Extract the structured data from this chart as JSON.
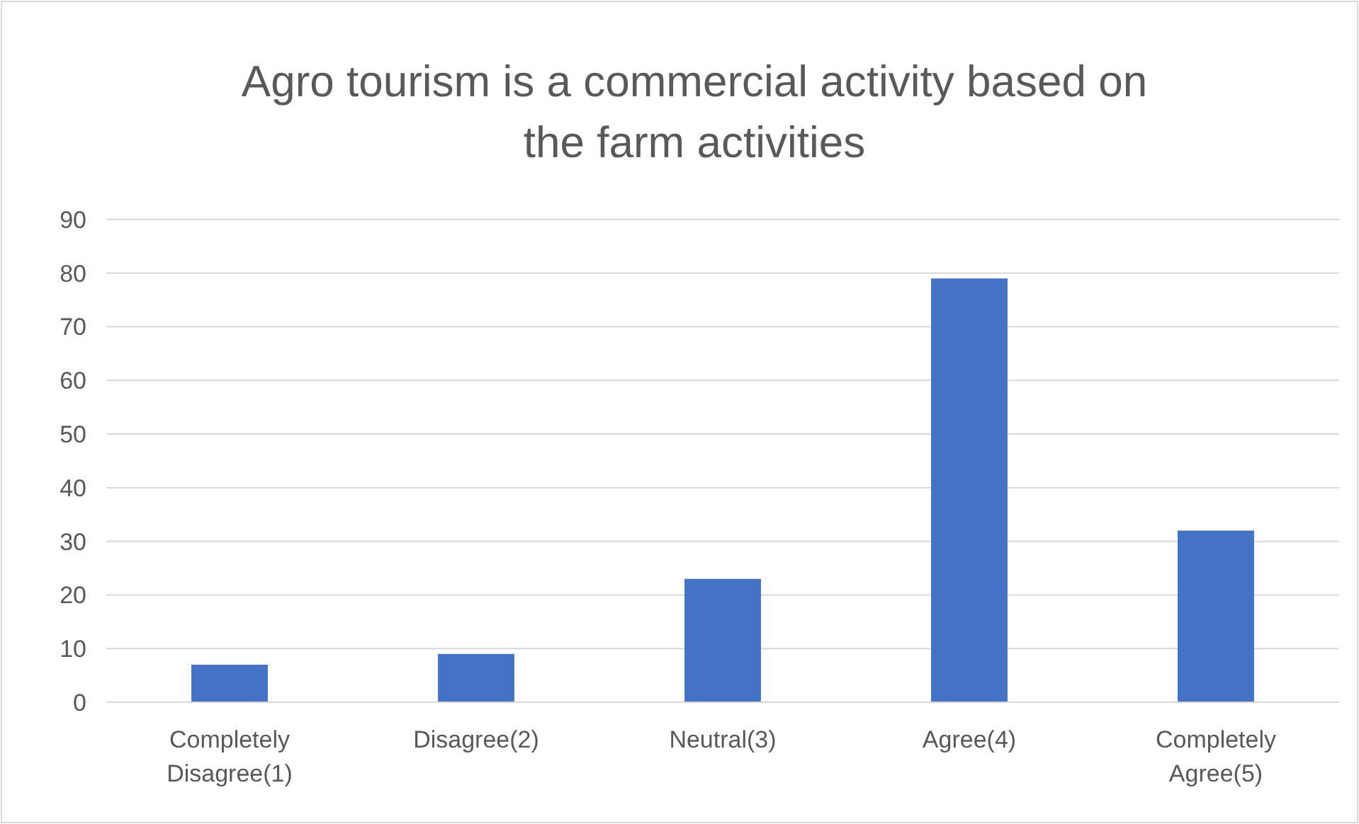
{
  "chart_data": {
    "type": "bar",
    "title": "Agro tourism is a commercial activity based on the farm activities",
    "categories": [
      "Completely Disagree(1)",
      "Disagree(2)",
      "Neutral(3)",
      "Agree(4)",
      "Completely Agree(5)"
    ],
    "values": [
      7,
      9,
      23,
      79,
      32
    ],
    "color": "#4472c4",
    "ylim": [
      0,
      90
    ],
    "yticks": [
      0,
      10,
      20,
      30,
      40,
      50,
      60,
      70,
      80,
      90
    ],
    "grid": "y"
  }
}
